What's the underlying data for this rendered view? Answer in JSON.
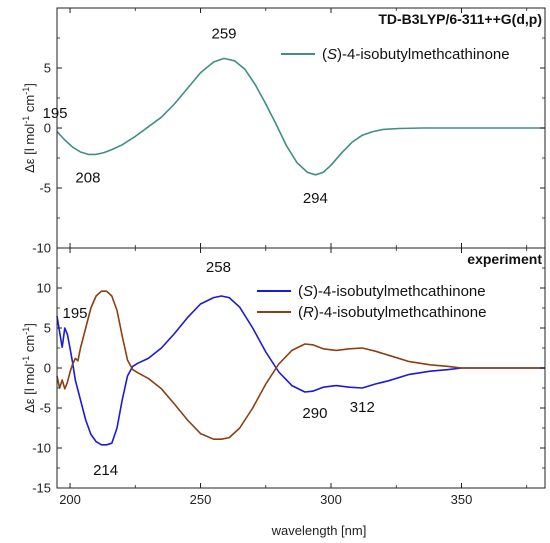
{
  "chart_data": [
    {
      "type": "line",
      "title": "TD-B3LYP/6-311++G(d,p)",
      "xlabel": "",
      "ylabel_parts": [
        "Δε [l mol",
        "-1",
        " cm",
        "-1",
        "]"
      ],
      "xlim": [
        195,
        382
      ],
      "ylim": [
        -10,
        10
      ],
      "yticks": [
        -10,
        -5,
        0,
        5
      ],
      "grid": false,
      "legend_placement": "top-right",
      "series": [
        {
          "name_parts": [
            "(",
            "S",
            ")-4-isobutylmethcathinone"
          ],
          "color": "#3f8f86",
          "points": [
            [
              195,
              -0.3
            ],
            [
              198,
              -1.0
            ],
            [
              201,
              -1.6
            ],
            [
              204,
              -2.0
            ],
            [
              207,
              -2.2
            ],
            [
              210,
              -2.2
            ],
            [
              213,
              -2.05
            ],
            [
              216,
              -1.8
            ],
            [
              220,
              -1.4
            ],
            [
              225,
              -0.7
            ],
            [
              230,
              0.1
            ],
            [
              235,
              0.9
            ],
            [
              240,
              2.0
            ],
            [
              245,
              3.3
            ],
            [
              250,
              4.6
            ],
            [
              255,
              5.5
            ],
            [
              259,
              5.8
            ],
            [
              263,
              5.6
            ],
            [
              267,
              4.9
            ],
            [
              271,
              3.6
            ],
            [
              275,
              2.0
            ],
            [
              279,
              0.3
            ],
            [
              283,
              -1.5
            ],
            [
              287,
              -2.9
            ],
            [
              291,
              -3.7
            ],
            [
              294,
              -3.9
            ],
            [
              297,
              -3.7
            ],
            [
              300,
              -3.1
            ],
            [
              304,
              -2.1
            ],
            [
              308,
              -1.2
            ],
            [
              312,
              -0.6
            ],
            [
              316,
              -0.3
            ],
            [
              320,
              -0.12
            ],
            [
              326,
              -0.04
            ],
            [
              335,
              0.0
            ],
            [
              350,
              0.0
            ],
            [
              382,
              0.0
            ]
          ]
        }
      ],
      "annotations": [
        {
          "text": "195",
          "x": 195,
          "y": 0
        },
        {
          "text": "208",
          "x": 208,
          "y": -2.2
        },
        {
          "text": "259",
          "x": 259,
          "y": 5.8
        },
        {
          "text": "294",
          "x": 294,
          "y": -3.9
        }
      ]
    },
    {
      "type": "line",
      "title": "experiment",
      "xlabel": "wavelength [nm]",
      "ylabel_parts": [
        "Δε [l mol",
        "-1",
        " cm",
        "-1",
        "]"
      ],
      "xlim": [
        195,
        382
      ],
      "ylim": [
        -15,
        15
      ],
      "xticks": [
        200,
        250,
        300,
        350
      ],
      "yticks": [
        -15,
        -10,
        -5,
        0,
        5,
        10
      ],
      "grid": false,
      "legend_placement": "top-right",
      "series": [
        {
          "name_parts": [
            "(",
            "S",
            ")-4-isobutylmethcathinone"
          ],
          "color": "#1a1adc",
          "points": [
            [
              195,
              6.5
            ],
            [
              196,
              4.5
            ],
            [
              197,
              2.6
            ],
            [
              198,
              5.0
            ],
            [
              199,
              4.2
            ],
            [
              200,
              2.5
            ],
            [
              201,
              0.6
            ],
            [
              202,
              -1.5
            ],
            [
              204,
              -4.0
            ],
            [
              206,
              -6.5
            ],
            [
              208,
              -8.3
            ],
            [
              210,
              -9.2
            ],
            [
              212,
              -9.6
            ],
            [
              214,
              -9.6
            ],
            [
              216,
              -9.4
            ],
            [
              218,
              -7.5
            ],
            [
              220,
              -4.0
            ],
            [
              222,
              -1.0
            ],
            [
              224,
              0.2
            ],
            [
              226,
              0.6
            ],
            [
              230,
              1.2
            ],
            [
              235,
              2.5
            ],
            [
              240,
              4.3
            ],
            [
              245,
              6.3
            ],
            [
              250,
              8.0
            ],
            [
              255,
              8.8
            ],
            [
              258,
              9.0
            ],
            [
              261,
              8.8
            ],
            [
              265,
              7.6
            ],
            [
              270,
              5.0
            ],
            [
              275,
              2.0
            ],
            [
              280,
              -0.5
            ],
            [
              285,
              -2.2
            ],
            [
              290,
              -3.0
            ],
            [
              293,
              -2.9
            ],
            [
              297,
              -2.4
            ],
            [
              302,
              -2.2
            ],
            [
              307,
              -2.4
            ],
            [
              312,
              -2.5
            ],
            [
              317,
              -2.0
            ],
            [
              322,
              -1.6
            ],
            [
              330,
              -0.8
            ],
            [
              338,
              -0.4
            ],
            [
              345,
              -0.2
            ],
            [
              350,
              0.0
            ],
            [
              382,
              0.0
            ]
          ]
        },
        {
          "name_parts": [
            "(",
            "R",
            ")-4-isobutylmethcathinone"
          ],
          "color": "#8b3f12",
          "points": [
            [
              195,
              -1.0
            ],
            [
              196,
              -2.5
            ],
            [
              197,
              -1.5
            ],
            [
              198,
              -2.6
            ],
            [
              199,
              -1.8
            ],
            [
              200,
              -0.5
            ],
            [
              201,
              0.5
            ],
            [
              202,
              1.2
            ],
            [
              203,
              0.9
            ],
            [
              204,
              2.5
            ],
            [
              206,
              5.0
            ],
            [
              208,
              7.5
            ],
            [
              210,
              9.0
            ],
            [
              212,
              9.6
            ],
            [
              214,
              9.6
            ],
            [
              216,
              9.0
            ],
            [
              218,
              7.2
            ],
            [
              220,
              4.0
            ],
            [
              222,
              1.0
            ],
            [
              224,
              -0.2
            ],
            [
              226,
              -0.6
            ],
            [
              230,
              -1.3
            ],
            [
              235,
              -2.6
            ],
            [
              240,
              -4.5
            ],
            [
              245,
              -6.5
            ],
            [
              250,
              -8.2
            ],
            [
              255,
              -8.9
            ],
            [
              258,
              -8.9
            ],
            [
              261,
              -8.7
            ],
            [
              265,
              -7.5
            ],
            [
              270,
              -5.0
            ],
            [
              275,
              -2.0
            ],
            [
              280,
              0.5
            ],
            [
              285,
              2.2
            ],
            [
              290,
              3.0
            ],
            [
              293,
              2.9
            ],
            [
              297,
              2.4
            ],
            [
              302,
              2.2
            ],
            [
              307,
              2.4
            ],
            [
              312,
              2.5
            ],
            [
              317,
              2.1
            ],
            [
              322,
              1.6
            ],
            [
              330,
              0.8
            ],
            [
              338,
              0.4
            ],
            [
              345,
              0.2
            ],
            [
              350,
              0.0
            ],
            [
              382,
              0.0
            ]
          ]
        }
      ],
      "annotations": [
        {
          "text": "195",
          "x": 195,
          "y": 5
        },
        {
          "text": "214",
          "x": 214,
          "y": -9.6
        },
        {
          "text": "258",
          "x": 258,
          "y": 9.0
        },
        {
          "text": "290",
          "x": 290,
          "y": -3.0
        },
        {
          "text": "312",
          "x": 312,
          "y": -2.5
        }
      ]
    }
  ]
}
